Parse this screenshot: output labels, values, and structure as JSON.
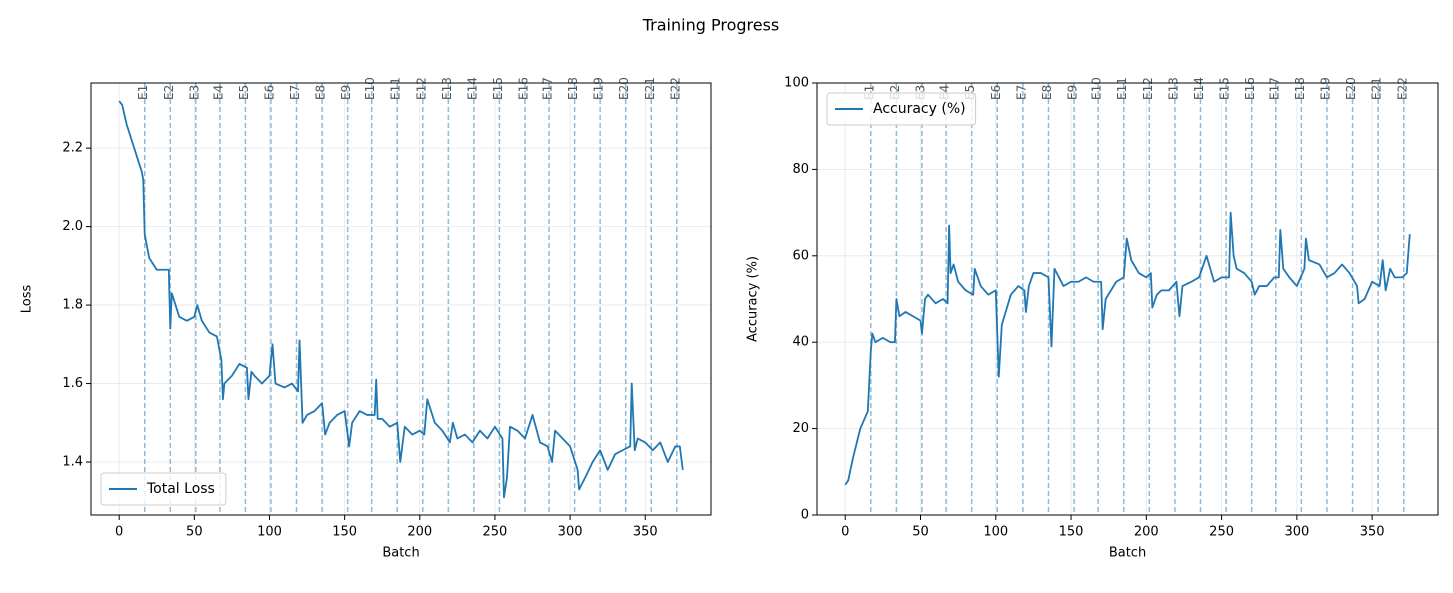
{
  "figure_title": "Training Progress",
  "chart_data": [
    {
      "type": "line",
      "xlabel": "Batch",
      "ylabel": "Loss",
      "xlim": [
        -18.75,
        393.75
      ],
      "ylim": [
        1.265,
        2.366
      ],
      "xticks": [
        0,
        50,
        100,
        150,
        200,
        250,
        300,
        350
      ],
      "yticks": [
        1.4,
        1.6,
        1.8,
        {
          "value": 2,
          "label": "2.0"
        },
        2.2
      ],
      "grid": true,
      "legend": "lower left",
      "epoch_lines": {
        "color": "#1f77b4",
        "x": [
          17,
          34,
          51,
          67,
          84,
          101,
          118,
          135,
          152,
          168,
          185,
          202,
          219,
          236,
          253,
          270,
          286,
          303,
          320,
          337,
          354,
          371
        ],
        "labels": [
          "E1",
          "E2",
          "E3",
          "E4",
          "E5",
          "E6",
          "E7",
          "E8",
          "E9",
          "E10",
          "E11",
          "E12",
          "E13",
          "E14",
          "E15",
          "E16",
          "E17",
          "E18",
          "E19",
          "E20",
          "E21",
          "E22"
        ]
      },
      "x": [
        0,
        2,
        5,
        10,
        15,
        16,
        17,
        20,
        25,
        30,
        33,
        34,
        35,
        40,
        45,
        50,
        52,
        55,
        60,
        65,
        68,
        69,
        70,
        75,
        80,
        85,
        86,
        88,
        90,
        95,
        100,
        102,
        104,
        110,
        115,
        119,
        120,
        122,
        125,
        130,
        135,
        137,
        140,
        145,
        150,
        153,
        155,
        160,
        165,
        170,
        171,
        172,
        175,
        180,
        185,
        187,
        190,
        195,
        200,
        203,
        205,
        210,
        215,
        220,
        222,
        225,
        230,
        235,
        240,
        245,
        250,
        255,
        256,
        258,
        260,
        265,
        270,
        275,
        280,
        285,
        288,
        290,
        295,
        300,
        305,
        306,
        310,
        315,
        320,
        325,
        330,
        335,
        340,
        341,
        343,
        345,
        350,
        355,
        360,
        365,
        370,
        373,
        375
      ],
      "series": [
        {
          "name": "Total Loss",
          "color": "#1f77b4",
          "values": [
            2.32,
            2.31,
            2.26,
            2.2,
            2.14,
            2.12,
            1.98,
            1.92,
            1.89,
            1.89,
            1.89,
            1.74,
            1.83,
            1.77,
            1.76,
            1.77,
            1.8,
            1.76,
            1.73,
            1.72,
            1.66,
            1.56,
            1.6,
            1.62,
            1.65,
            1.64,
            1.56,
            1.63,
            1.62,
            1.6,
            1.62,
            1.7,
            1.6,
            1.59,
            1.6,
            1.58,
            1.71,
            1.5,
            1.52,
            1.53,
            1.55,
            1.47,
            1.5,
            1.52,
            1.53,
            1.44,
            1.5,
            1.53,
            1.52,
            1.52,
            1.61,
            1.51,
            1.51,
            1.49,
            1.5,
            1.4,
            1.49,
            1.47,
            1.48,
            1.47,
            1.56,
            1.5,
            1.48,
            1.45,
            1.5,
            1.46,
            1.47,
            1.45,
            1.48,
            1.46,
            1.49,
            1.46,
            1.31,
            1.36,
            1.49,
            1.48,
            1.46,
            1.52,
            1.45,
            1.44,
            1.4,
            1.48,
            1.46,
            1.44,
            1.38,
            1.33,
            1.36,
            1.4,
            1.43,
            1.38,
            1.42,
            1.43,
            1.44,
            1.6,
            1.43,
            1.46,
            1.45,
            1.43,
            1.45,
            1.4,
            1.44,
            1.44,
            1.38
          ]
        }
      ]
    },
    {
      "type": "line",
      "xlabel": "Batch",
      "ylabel": "Accuracy (%)",
      "xlim": [
        -18.75,
        393.75
      ],
      "ylim": [
        0,
        100
      ],
      "xticks": [
        0,
        50,
        100,
        150,
        200,
        250,
        300,
        350
      ],
      "yticks": [
        0,
        20,
        40,
        60,
        80,
        100
      ],
      "grid": true,
      "legend": "upper left",
      "epoch_lines": {
        "color": "#1f77b4",
        "x": [
          17,
          34,
          51,
          67,
          84,
          101,
          118,
          135,
          152,
          168,
          185,
          202,
          219,
          236,
          253,
          270,
          286,
          303,
          320,
          337,
          354,
          371
        ],
        "labels": [
          "E1",
          "E2",
          "E3",
          "E4",
          "E5",
          "E6",
          "E7",
          "E8",
          "E9",
          "E10",
          "E11",
          "E12",
          "E13",
          "E14",
          "E15",
          "E16",
          "E17",
          "E18",
          "E19",
          "E20",
          "E21",
          "E22"
        ]
      },
      "x": [
        0,
        2,
        5,
        10,
        15,
        17,
        18,
        20,
        25,
        30,
        33,
        34,
        36,
        40,
        45,
        50,
        51,
        53,
        55,
        60,
        65,
        68,
        69,
        70,
        72,
        75,
        80,
        85,
        86,
        90,
        95,
        100,
        102,
        104,
        110,
        115,
        119,
        120,
        122,
        125,
        130,
        135,
        137,
        139,
        145,
        150,
        155,
        160,
        165,
        170,
        171,
        173,
        180,
        185,
        187,
        190,
        195,
        200,
        203,
        204,
        207,
        210,
        215,
        220,
        222,
        224,
        230,
        235,
        240,
        245,
        250,
        255,
        256,
        258,
        260,
        265,
        270,
        272,
        275,
        280,
        285,
        288,
        289,
        291,
        295,
        300,
        305,
        306,
        308,
        315,
        320,
        325,
        330,
        335,
        340,
        341,
        345,
        350,
        355,
        357,
        359,
        362,
        365,
        370,
        373,
        375
      ],
      "series": [
        {
          "name": "Accuracy (%)",
          "color": "#1f77b4",
          "values": [
            7,
            8,
            13,
            20,
            24,
            38,
            42,
            40,
            41,
            40,
            40,
            50,
            46,
            47,
            46,
            45,
            42,
            50,
            51,
            49,
            50,
            49,
            67,
            56,
            58,
            54,
            52,
            51,
            57,
            53,
            51,
            52,
            32,
            44,
            51,
            53,
            52,
            47,
            53,
            56,
            56,
            55,
            39,
            57,
            53,
            54,
            54,
            55,
            54,
            54,
            43,
            50,
            54,
            55,
            64,
            59,
            56,
            55,
            56,
            48,
            51,
            52,
            52,
            54,
            46,
            53,
            54,
            55,
            60,
            54,
            55,
            55,
            70,
            60,
            57,
            56,
            54,
            51,
            53,
            53,
            55,
            55,
            66,
            57,
            55,
            53,
            57,
            64,
            59,
            58,
            55,
            56,
            58,
            56,
            53,
            49,
            50,
            54,
            53,
            59,
            52,
            57,
            55,
            55,
            56,
            65
          ]
        }
      ]
    }
  ]
}
